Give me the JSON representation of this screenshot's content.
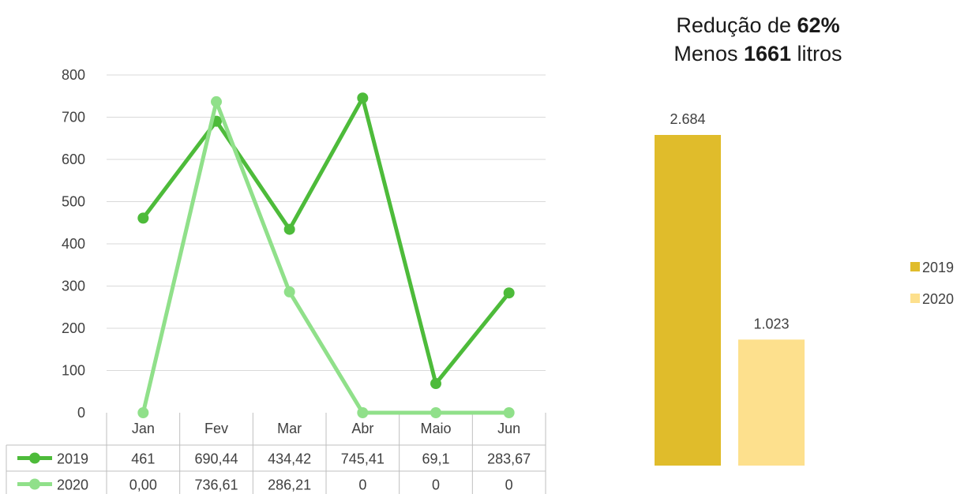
{
  "line_chart": {
    "categories": [
      "Jan",
      "Fev",
      "Mar",
      "Abr",
      "Maio",
      "Jun"
    ],
    "y_ticks": [
      "0",
      "100",
      "200",
      "300",
      "400",
      "500",
      "600",
      "700",
      "800"
    ],
    "series": [
      {
        "name": "2019",
        "color": "#4dbb3a",
        "labels": [
          "461",
          "690,44",
          "434,42",
          "745,41",
          "69,1",
          "283,67"
        ]
      },
      {
        "name": "2020",
        "color": "#90e08a",
        "labels": [
          "0,00",
          "736,61",
          "286,21",
          "0",
          "0",
          "0"
        ]
      }
    ]
  },
  "bar_chart": {
    "title_line1_prefix": "Redução de ",
    "title_line1_bold": "62%",
    "title_line2_prefix": "Menos ",
    "title_line2_bold": "1661",
    "title_line2_suffix": " litros",
    "legend": [
      {
        "name": "2019",
        "color": "#e0bc2b"
      },
      {
        "name": "2020",
        "color": "#fde08d"
      }
    ],
    "data_labels": [
      "2.684",
      "1.023"
    ]
  },
  "chart_data": [
    {
      "type": "line",
      "categories": [
        "Jan",
        "Fev",
        "Mar",
        "Abr",
        "Maio",
        "Jun"
      ],
      "series": [
        {
          "name": "2019",
          "values": [
            461,
            690.44,
            434.42,
            745.41,
            69.1,
            283.67
          ]
        },
        {
          "name": "2020",
          "values": [
            0,
            736.61,
            286.21,
            0,
            0,
            0
          ]
        }
      ],
      "ylim": [
        0,
        800
      ],
      "grid": true,
      "legend": "data-table"
    },
    {
      "type": "bar",
      "categories": [
        "2019",
        "2020"
      ],
      "values": [
        2684,
        1023
      ],
      "title": "Redução de 62% Menos 1661 litros",
      "legend": "right"
    }
  ]
}
